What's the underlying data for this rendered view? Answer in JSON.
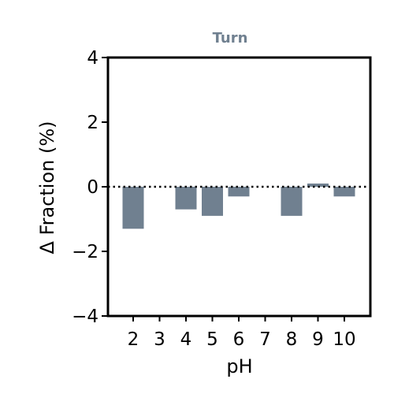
{
  "chart_data": {
    "type": "bar",
    "title": "Turn",
    "xlabel": "pH",
    "ylabel": "Δ Fraction (%)",
    "categories": [
      "2",
      "3",
      "4",
      "5",
      "6",
      "7",
      "8",
      "9",
      "10"
    ],
    "values": [
      -1.3,
      0.0,
      -0.7,
      -0.9,
      -0.3,
      0.0,
      -0.9,
      0.1,
      -0.3
    ],
    "ylim": [
      -4,
      4
    ],
    "yticks": [
      "4",
      "2",
      "0",
      "−2",
      "−4"
    ],
    "ytick_values": [
      4,
      2,
      0,
      -2,
      -4
    ],
    "grid": false,
    "zero_line": "dotted",
    "colors": {
      "bar": "#708090",
      "title": "#708090",
      "axis": "#000000"
    }
  }
}
